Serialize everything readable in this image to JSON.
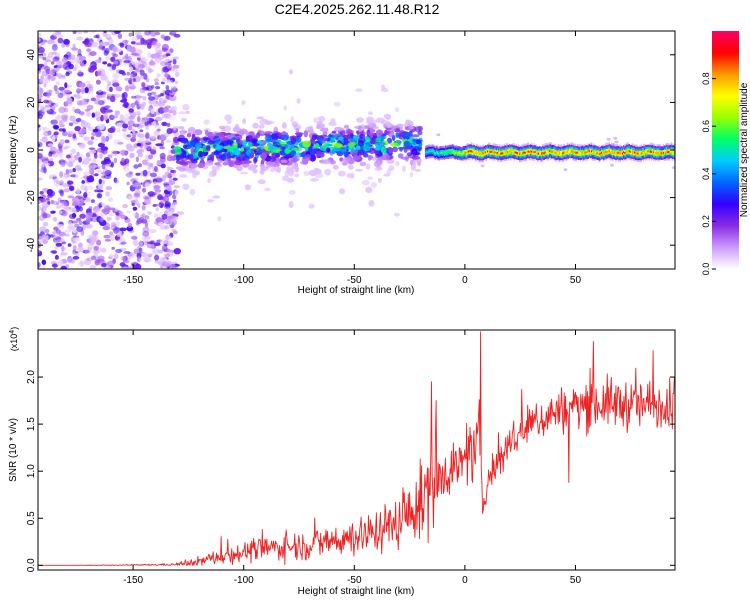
{
  "title": "C2E4.2025.262.11.48.R12",
  "chart_data": [
    {
      "type": "heatmap",
      "xlabel": "Height of straight line (km)",
      "ylabel": "Frequency (Hz)",
      "xlim": [
        -193,
        95
      ],
      "ylim": [
        -50,
        50
      ],
      "xticks": [
        -150,
        -100,
        -50,
        0,
        50
      ],
      "xtick_labels": [
        "-150",
        "-100",
        "-50",
        "0",
        "50"
      ],
      "yticks": [
        -40,
        -20,
        0,
        20,
        40
      ],
      "ytick_labels": [
        "-40",
        "-20",
        "0",
        "20",
        "40"
      ],
      "colorbar": {
        "label": "Normalized spectral amplitude",
        "range": [
          0,
          1
        ],
        "ticks": [
          0.0,
          0.2,
          0.4,
          0.6,
          0.8
        ],
        "tick_labels": [
          "0.0",
          "0.2",
          "0.4",
          "0.6",
          "0.8"
        ],
        "colors": [
          "#ffffff",
          "#cc99ff",
          "#8a2be2",
          "#3300ff",
          "#0066ff",
          "#00ccff",
          "#00ff66",
          "#99ff00",
          "#ffff00",
          "#ff9900",
          "#ff0000",
          "#ff0066"
        ]
      },
      "regions": [
        {
          "x": [
            -193,
            -130
          ],
          "freq_center": 0,
          "freq_spread": 50,
          "amplitude": 0.12,
          "description": "broadband noise"
        },
        {
          "x": [
            -130,
            -20
          ],
          "freq_center": 0,
          "freq_spread": 8,
          "amplitude": 0.35,
          "description": "scattered band"
        },
        {
          "x": [
            -18,
            95
          ],
          "freq_center": -1,
          "freq_spread": 1.5,
          "amplitude": 0.9,
          "description": "narrow coherent line"
        }
      ]
    },
    {
      "type": "line",
      "xlabel": "Height of straight line (km)",
      "ylabel": "SNR (10 * v/v)",
      "y_multiplier": "(x10",
      "y_multiplier_exp": "4",
      "y_multiplier_close": ")",
      "xlim": [
        -193,
        95
      ],
      "ylim": [
        -0.05,
        2.5
      ],
      "xticks": [
        -150,
        -100,
        -50,
        0,
        50
      ],
      "xtick_labels": [
        "-150",
        "-100",
        "-50",
        "0",
        "50"
      ],
      "yticks": [
        0.0,
        0.5,
        1.0,
        1.5,
        2.0
      ],
      "ytick_labels": [
        "0.0",
        "0.5",
        "1.0",
        "1.5",
        "2.0"
      ],
      "line_color": "#ee2222",
      "series": [
        {
          "name": "SNR",
          "x": [
            -193,
            -180,
            -160,
            -140,
            -130,
            -125,
            -120,
            -115,
            -110,
            -100,
            -90,
            -80,
            -70,
            -60,
            -50,
            -40,
            -30,
            -25,
            -20,
            -18,
            -15,
            -12,
            -10,
            -5,
            0,
            3,
            5,
            7,
            8,
            10,
            15,
            20,
            30,
            40,
            50,
            60,
            70,
            80,
            90,
            95
          ],
          "y": [
            0.0,
            0.0,
            0.0,
            0.005,
            0.01,
            0.02,
            0.04,
            0.07,
            0.1,
            0.14,
            0.18,
            0.2,
            0.22,
            0.26,
            0.3,
            0.36,
            0.46,
            0.55,
            0.65,
            0.72,
            0.85,
            0.95,
            1.0,
            1.05,
            1.1,
            1.15,
            1.2,
            1.3,
            0.6,
            0.9,
            1.1,
            1.3,
            1.5,
            1.62,
            1.7,
            1.72,
            1.72,
            1.7,
            1.72,
            1.72
          ],
          "noise_amplitude": [
            0.0,
            0.0,
            0.005,
            0.01,
            0.02,
            0.04,
            0.06,
            0.08,
            0.1,
            0.12,
            0.14,
            0.16,
            0.18,
            0.2,
            0.22,
            0.26,
            0.3,
            0.35,
            0.45,
            0.5,
            0.55,
            0.45,
            0.35,
            0.3,
            0.28,
            0.3,
            0.35,
            0.5,
            0.15,
            0.2,
            0.22,
            0.24,
            0.25,
            0.26,
            0.28,
            0.3,
            0.3,
            0.3,
            0.3,
            0.3
          ]
        }
      ],
      "peaks": [
        {
          "x": 7,
          "y": 2.48
        },
        {
          "x": -15,
          "y": 1.95
        },
        {
          "x": -13,
          "y": 1.75
        },
        {
          "x": 58,
          "y": 2.38
        },
        {
          "x": 85,
          "y": 2.28
        },
        {
          "x": 47,
          "y": 0.88
        }
      ]
    }
  ]
}
